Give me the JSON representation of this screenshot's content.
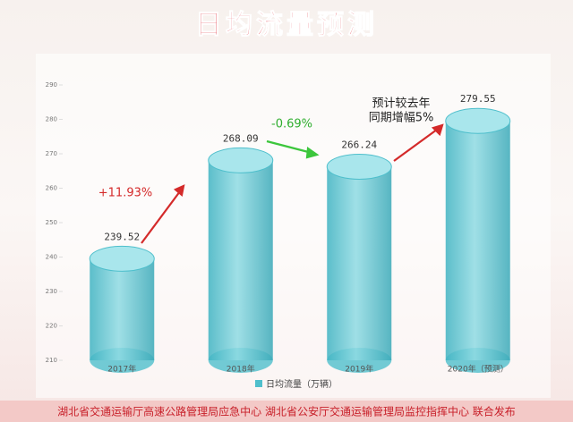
{
  "chart_data": {
    "type": "cylinder",
    "title": "日均流量预测",
    "categories": [
      "2017年",
      "2018年",
      "2019年",
      "2020年（预测）"
    ],
    "series": [
      {
        "name": "日均流量（万辆）",
        "color": "#4fbfcc",
        "values": [
          239.52,
          268.09,
          266.24,
          279.55
        ]
      }
    ],
    "ylim": [
      210,
      290
    ],
    "yticks": [
      210,
      220,
      230,
      240,
      250,
      260,
      270,
      280,
      290
    ],
    "annotations": [
      "+11.93%",
      "-0.69%",
      "预计较去年",
      "同期增幅5%"
    ],
    "source": "湖北省交通运输厅高速公路管理局应急中心  湖北省公安厅交通运输管理局监控指挥中心  联合发布"
  }
}
